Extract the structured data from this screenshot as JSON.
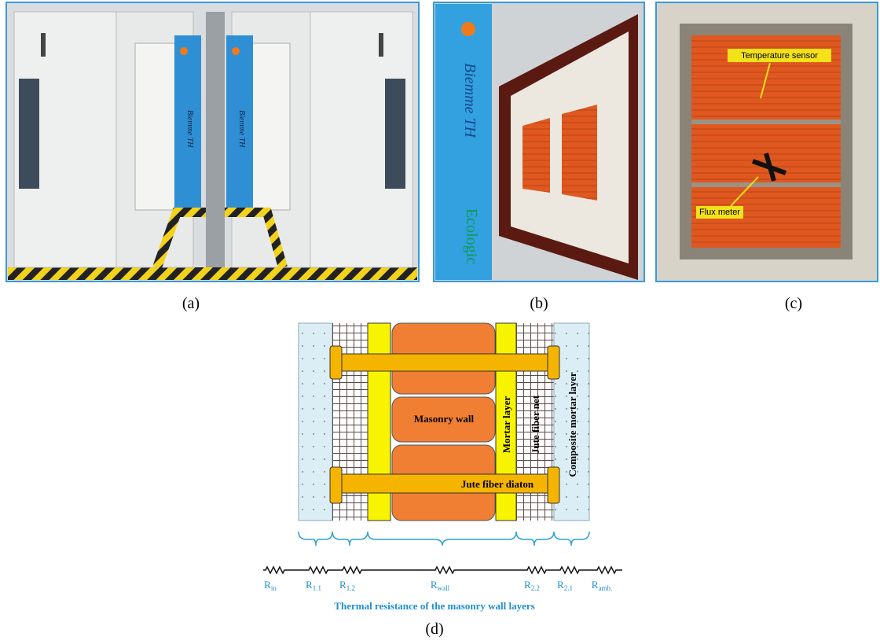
{
  "panel_labels": [
    "(a)",
    "(b)",
    "(c)",
    "(d)"
  ],
  "photo_a": {
    "panel_texts": [
      "Biemme TH",
      "Biemme TH"
    ]
  },
  "photo_b": {
    "panel_texts": [
      "Biemme TH",
      "Ecologic"
    ]
  },
  "photo_c": {
    "annotations": [
      "Temperature sensor",
      "Flux meter"
    ]
  },
  "diagram": {
    "layers": {
      "masonry": "Masonry wall",
      "mortar": "Mortar layer",
      "net": "Jute fiber net",
      "composite": "Composite mortar layer",
      "diaton": "Jute fiber diaton"
    },
    "resistances": [
      {
        "symbol": "R",
        "subscript": "in"
      },
      {
        "symbol": "R",
        "subscript": "1.1"
      },
      {
        "symbol": "R",
        "subscript": "1.2"
      },
      {
        "symbol": "R",
        "subscript": "wall"
      },
      {
        "symbol": "R",
        "subscript": "2.2"
      },
      {
        "symbol": "R",
        "subscript": "2.1"
      },
      {
        "symbol": "R",
        "subscript": "amb."
      }
    ],
    "caption": "Thermal resistance of the masonry wall layers"
  }
}
